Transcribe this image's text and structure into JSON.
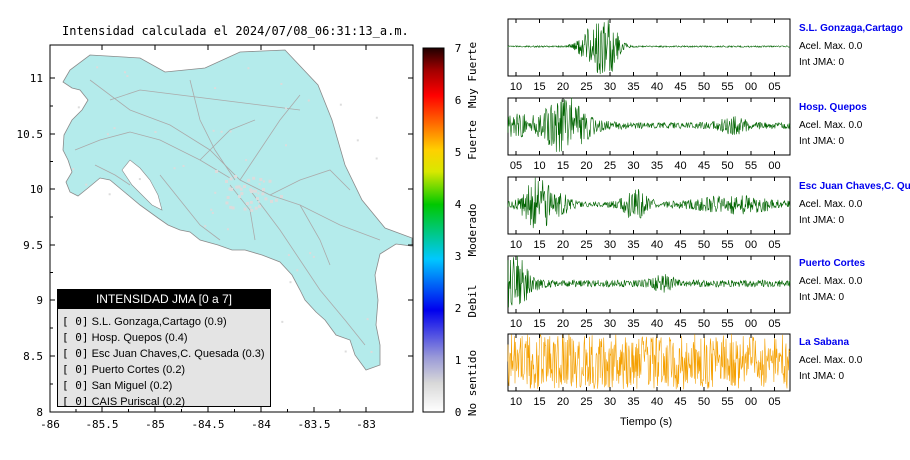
{
  "map": {
    "title": "Intensidad calculada el 2024/07/08_06:31:13_a.m.",
    "lon_ticks": [
      "-86",
      "-85.5",
      "-85",
      "-84.5",
      "-84",
      "-83.5",
      "-83"
    ],
    "lat_ticks": [
      "8",
      "8.5",
      "9",
      "9.5",
      "10",
      "10.5",
      "11"
    ],
    "land_color": "#b4ebeb",
    "road_color": "#aaaaaa"
  },
  "legend": {
    "title": "INTENSIDAD JMA [0 a 7]",
    "items": [
      {
        "value": "[ 0]",
        "station": "S.L. Gonzaga,Cartago (0.9)"
      },
      {
        "value": "[ 0]",
        "station": "Hosp. Quepos (0.4)"
      },
      {
        "value": "[ 0]",
        "station": "Esc Juan Chaves,C. Quesada (0.3)"
      },
      {
        "value": "[ 0]",
        "station": "Puerto Cortes (0.2)"
      },
      {
        "value": "[ 0]",
        "station": "San Miguel (0.2)"
      },
      {
        "value": "[ 0]",
        "station": "CAIS Puriscal (0.2)"
      }
    ]
  },
  "colorbar": {
    "ticks": [
      "0",
      "1",
      "2",
      "3",
      "4",
      "5",
      "6",
      "7"
    ],
    "labels": [
      "No sentido",
      "Debil",
      "Moderado",
      "Fuerte",
      "Muy Fuerte"
    ]
  },
  "stations": [
    {
      "name": "S.L. Gonzaga,Cartago",
      "acel": "Acel. Max. 0.0",
      "jma": "Int JMA: 0",
      "ticks": [
        "10",
        "15",
        "20",
        "25",
        "30",
        "35",
        "40",
        "45",
        "50",
        "55",
        "00",
        "05"
      ],
      "color": "#006400"
    },
    {
      "name": "Hosp. Quepos",
      "acel": "Acel. Max. 0.0",
      "jma": "Int JMA: 0",
      "ticks": [
        "05",
        "10",
        "15",
        "20",
        "25",
        "30",
        "35",
        "40",
        "45",
        "50",
        "55",
        "00"
      ],
      "color": "#006400"
    },
    {
      "name": "Esc Juan Chaves,C. Qu",
      "acel": "Acel. Max. 0.0",
      "jma": "Int JMA: 0",
      "ticks": [
        "10",
        "15",
        "20",
        "25",
        "30",
        "35",
        "40",
        "45",
        "50",
        "55",
        "00",
        "05"
      ],
      "color": "#006400"
    },
    {
      "name": "Puerto Cortes",
      "acel": "Acel. Max. 0.0",
      "jma": "Int JMA: 0",
      "ticks": [
        "10",
        "15",
        "20",
        "25",
        "30",
        "35",
        "40",
        "45",
        "50",
        "55",
        "00",
        "05"
      ],
      "color": "#006400"
    },
    {
      "name": "La Sabana",
      "acel": "Acel. Max. 0.0",
      "jma": "Int JMA: 0",
      "ticks": [
        "10",
        "15",
        "20",
        "25",
        "30",
        "35",
        "40",
        "45",
        "50",
        "55",
        "00",
        "05"
      ],
      "color": "#f5a000"
    }
  ],
  "xlabel": "Tiempo (s)",
  "chart_data": [
    {
      "type": "heatmap",
      "title": "Intensidad calculada el 2024/07/08_06:31:13_a.m.",
      "xlim": [
        -86,
        -82.6
      ],
      "ylim": [
        8,
        11.3
      ],
      "colorbar_range": [
        0,
        7
      ],
      "grid": false
    },
    {
      "type": "line",
      "xlabel": "Tiempo (s)",
      "series": [
        {
          "name": "S.L. Gonzaga,Cartago",
          "acel_max": 0.0,
          "int_jma": 0
        },
        {
          "name": "Hosp. Quepos",
          "acel_max": 0.0,
          "int_jma": 0
        },
        {
          "name": "Esc Juan Chaves,C. Qu",
          "acel_max": 0.0,
          "int_jma": 0
        },
        {
          "name": "Puerto Cortes",
          "acel_max": 0.0,
          "int_jma": 0
        },
        {
          "name": "La Sabana",
          "acel_max": 0.0,
          "int_jma": 0
        }
      ]
    }
  ]
}
